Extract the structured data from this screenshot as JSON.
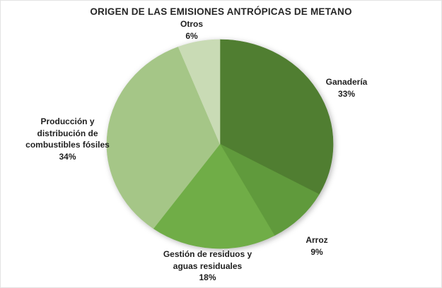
{
  "title": "ORIGEN DE LAS EMISIONES ANTRÓPICAS DE METANO",
  "chart_data": {
    "type": "pie",
    "title": "ORIGEN DE LAS EMISIONES ANTRÓPICAS DE METANO",
    "unit": "%",
    "start_angle_deg": 0,
    "direction": "clockwise",
    "legend": "none",
    "label_style": "outside: category name + percentage",
    "slices": [
      {
        "label": "Ganadería",
        "value": 33,
        "pct_label": "33%",
        "color": "#507e31",
        "lines": [
          "Ganadería"
        ]
      },
      {
        "label": "Arroz",
        "value": 9,
        "pct_label": "9%",
        "color": "#609a3c",
        "lines": [
          "Arroz"
        ]
      },
      {
        "label": "Gestión de residuos y aguas residuales",
        "value": 18,
        "pct_label": "18%",
        "color": "#70ad47",
        "lines": [
          "Gestión de residuos y",
          "aguas residuales"
        ]
      },
      {
        "label": "Producción y distribución de combustibles fósiles",
        "value": 34,
        "pct_label": "34%",
        "color": "#a5c687",
        "lines": [
          "Producción y",
          "distribución de",
          "combustibles fósiles"
        ]
      },
      {
        "label": "Otros",
        "value": 6,
        "pct_label": "6%",
        "color": "#c9dbb5",
        "lines": [
          "Otros"
        ]
      }
    ]
  },
  "colors": {
    "background": "#ffffff",
    "frame_border": "#e3e3e3",
    "title_text": "#262626",
    "label_text": "#1f1f1f"
  }
}
